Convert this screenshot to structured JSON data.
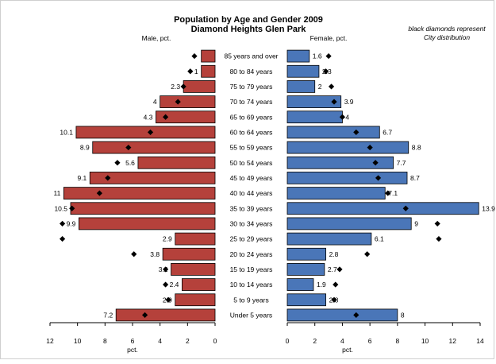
{
  "chart_data": {
    "type": "bar",
    "title": "Population by Age and Gender 2009",
    "subtitle": "Diamond Heights Glen Park",
    "note_lines": [
      "black diamonds represent",
      "City distribution"
    ],
    "categories": [
      "85 years and over",
      "80 to 84 years",
      "75 to 79 years",
      "70 to 74 years",
      "65 to 69 years",
      "60 to 64 years",
      "55 to 59 years",
      "50 to 54 years",
      "45 to 49 years",
      "40 to 44 years",
      "35 to 39 years",
      "30 to 34 years",
      "25 to 29 years",
      "20 to 24 years",
      "15 to 19 years",
      "10 to 14 years",
      "5 to 9 years",
      "Under 5 years"
    ],
    "male": {
      "label": "Male, pct.",
      "xlabel": "pct.",
      "xlim": [
        0,
        12
      ],
      "ticks": [
        12,
        10,
        8,
        6,
        4,
        2,
        0
      ],
      "color": "#b5413b",
      "values": [
        1,
        1,
        2.3,
        4,
        4.3,
        10.1,
        8.9,
        5.6,
        9.1,
        11,
        10.5,
        9.9,
        2.9,
        3.8,
        3.2,
        2.4,
        2.9,
        7.2
      ],
      "value_labels": [
        "",
        "1",
        "2.3",
        "4",
        "4.3",
        "10.1",
        "8.9",
        "5.6",
        "9.1",
        "11",
        "10.5",
        "9.9",
        "2.9",
        "3.8",
        "3.2",
        "2.4",
        "2.9",
        "7.2"
      ],
      "city": [
        1.5,
        1.8,
        2.3,
        2.7,
        3.6,
        4.7,
        6.3,
        7.1,
        7.8,
        8.4,
        10.4,
        11.1,
        11.1,
        5.9,
        3.6,
        3.6,
        3.4,
        5.1
      ]
    },
    "female": {
      "label": "Female, pct.",
      "xlabel": "pct.",
      "xlim": [
        0,
        14
      ],
      "ticks": [
        0,
        2,
        4,
        6,
        8,
        10,
        12,
        14
      ],
      "color": "#4a76b8",
      "values": [
        1.6,
        2.3,
        2,
        3.9,
        4,
        6.7,
        8.8,
        7.7,
        8.7,
        7.1,
        13.9,
        9,
        6.1,
        2.8,
        2.7,
        1.9,
        2.8,
        8
      ],
      "value_labels": [
        "1.6",
        "2.3",
        "2",
        "3.9",
        "4",
        "6.7",
        "8.8",
        "7.7",
        "8.7",
        "7.1",
        "13.9",
        "9",
        "6.1",
        "2.8",
        "2.7",
        "1.9",
        "2.8",
        "8"
      ],
      "city": [
        3.0,
        2.8,
        3.2,
        3.4,
        4.0,
        5.0,
        6.0,
        6.4,
        6.6,
        7.3,
        8.6,
        10.9,
        11.0,
        5.8,
        3.8,
        3.5,
        3.4,
        5.0
      ]
    }
  }
}
